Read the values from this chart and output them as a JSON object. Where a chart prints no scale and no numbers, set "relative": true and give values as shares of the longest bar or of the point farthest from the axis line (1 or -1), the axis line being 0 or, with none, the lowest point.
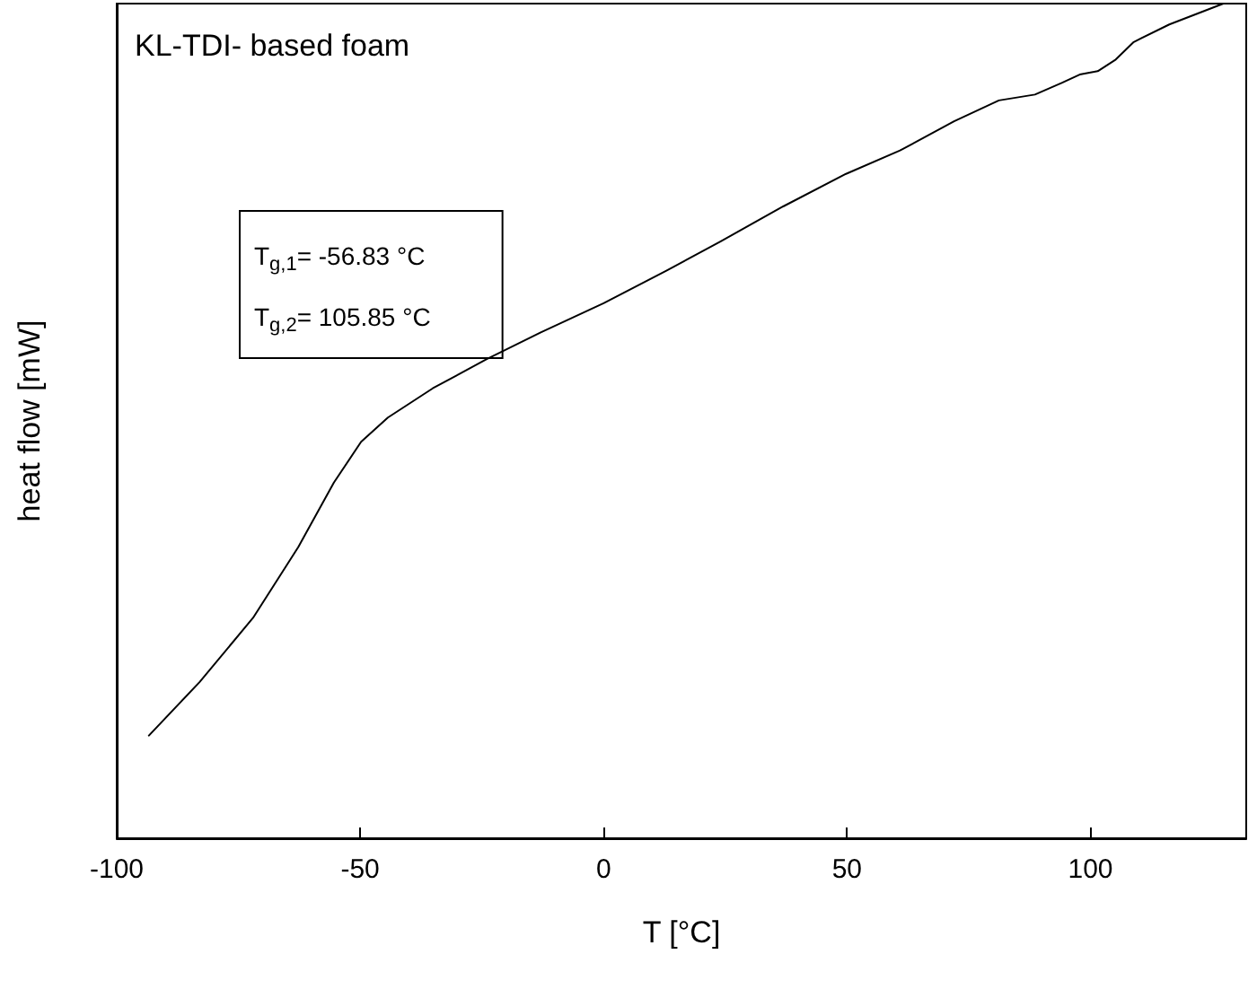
{
  "chart_data": {
    "type": "line",
    "title": "KL-TDI- based foam",
    "xlabel": "T [°C]",
    "ylabel": "heat flow [mW]",
    "relative": true,
    "annotations": [
      "T$_{g,1}$= -56.83 °C",
      "T$_{g,2}$= 105.85 °C"
    ],
    "xlim": [
      -100,
      132
    ],
    "xticks": [
      -100,
      -50,
      0,
      50,
      100
    ],
    "grid": false,
    "marker": "none",
    "line_style": "solid",
    "series": [
      {
        "color": "#000000",
        "x": [
          -93.4,
          -83.0,
          -72.0,
          -62.7,
          -55.4,
          -49.8,
          -44.3,
          -35.1,
          -24.0,
          -12.9,
          0,
          12.9,
          24.0,
          36.9,
          49.8,
          60.9,
          72.0,
          81.2,
          88.6,
          94.1,
          97.8,
          101.5,
          105.2,
          108.9,
          116.2,
          127.3
        ],
        "values": [
          0.123,
          0.187,
          0.264,
          0.349,
          0.426,
          0.475,
          0.504,
          0.539,
          0.574,
          0.606,
          0.641,
          0.68,
          0.715,
          0.757,
          0.796,
          0.824,
          0.859,
          0.884,
          0.891,
          0.905,
          0.915,
          0.919,
          0.933,
          0.954,
          0.975,
          1
        ]
      }
    ]
  }
}
